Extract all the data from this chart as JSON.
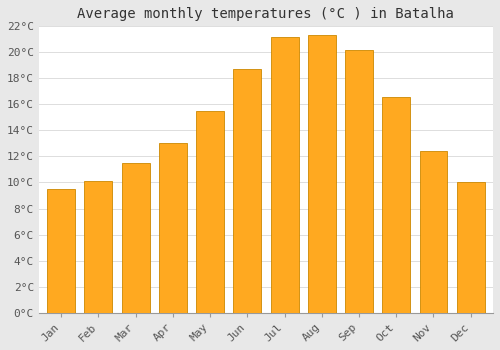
{
  "months": [
    "Jan",
    "Feb",
    "Mar",
    "Apr",
    "May",
    "Jun",
    "Jul",
    "Aug",
    "Sep",
    "Oct",
    "Nov",
    "Dec"
  ],
  "temperatures": [
    9.5,
    10.1,
    11.5,
    13.0,
    15.5,
    18.7,
    21.2,
    21.3,
    20.2,
    16.6,
    12.4,
    10.0
  ],
  "bar_color": "#FFA920",
  "bar_edge_color": "#CC8800",
  "title": "Average monthly temperatures (°C ) in Batalha",
  "ylim": [
    0,
    22
  ],
  "ytick_step": 2,
  "outer_background": "#e8e8e8",
  "plot_background": "#ffffff",
  "grid_color": "#dddddd",
  "title_fontsize": 10,
  "tick_label_fontsize": 8
}
